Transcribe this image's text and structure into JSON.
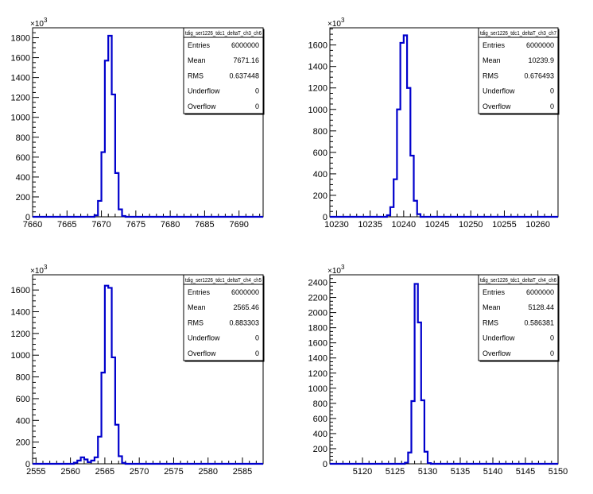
{
  "chart_data": [
    {
      "type": "bar",
      "histogram": true,
      "title": "tdig_ser1226_tdc1_deltaT_ch3_ch6",
      "y_exponent": "3",
      "xlim": [
        7660,
        7693.5
      ],
      "ylim": [
        0,
        1900
      ],
      "xticks": [
        7660,
        7665,
        7670,
        7675,
        7680,
        7685,
        7690
      ],
      "yticks": [
        0,
        200,
        400,
        600,
        800,
        1000,
        1200,
        1400,
        1600,
        1800
      ],
      "bin_width": 0.5,
      "bins": [
        {
          "x": 7669.0,
          "y": 15
        },
        {
          "x": 7669.5,
          "y": 160
        },
        {
          "x": 7670.0,
          "y": 650
        },
        {
          "x": 7670.5,
          "y": 1570
        },
        {
          "x": 7671.0,
          "y": 1820
        },
        {
          "x": 7671.5,
          "y": 1230
        },
        {
          "x": 7672.0,
          "y": 440
        },
        {
          "x": 7672.5,
          "y": 75
        },
        {
          "x": 7673.0,
          "y": 8
        }
      ],
      "stats": [
        {
          "label": "Entries",
          "value": "6000000"
        },
        {
          "label": "Mean",
          "value": "7671.16"
        },
        {
          "label": "RMS",
          "value": "0.637448"
        },
        {
          "label": "Underflow",
          "value": "0"
        },
        {
          "label": "Overflow",
          "value": "0"
        }
      ],
      "color": "#0000cc"
    },
    {
      "type": "bar",
      "histogram": true,
      "title": "tdig_ser1226_tdc1_deltaT_ch3_ch7",
      "y_exponent": "3",
      "xlim": [
        10229,
        10263
      ],
      "ylim": [
        0,
        1760
      ],
      "xticks": [
        10230,
        10235,
        10240,
        10245,
        10250,
        10255,
        10260
      ],
      "yticks": [
        0,
        200,
        400,
        600,
        800,
        1000,
        1200,
        1400,
        1600
      ],
      "bin_width": 0.5,
      "bins": [
        {
          "x": 10237.5,
          "y": 15
        },
        {
          "x": 10238.0,
          "y": 90
        },
        {
          "x": 10238.5,
          "y": 350
        },
        {
          "x": 10239.0,
          "y": 1000
        },
        {
          "x": 10239.5,
          "y": 1620
        },
        {
          "x": 10240.0,
          "y": 1690
        },
        {
          "x": 10240.5,
          "y": 1200
        },
        {
          "x": 10241.0,
          "y": 570
        },
        {
          "x": 10241.5,
          "y": 150
        },
        {
          "x": 10242.0,
          "y": 25
        }
      ],
      "stats": [
        {
          "label": "Entries",
          "value": "6000000"
        },
        {
          "label": "Mean",
          "value": "10239.9"
        },
        {
          "label": "RMS",
          "value": "0.676493"
        },
        {
          "label": "Underflow",
          "value": "0"
        },
        {
          "label": "Overflow",
          "value": "0"
        }
      ],
      "color": "#0000cc"
    },
    {
      "type": "bar",
      "histogram": true,
      "title": "tdig_ser1226_tdc1_deltaT_ch4_ch5",
      "y_exponent": "3",
      "xlim": [
        2554.5,
        2588
      ],
      "ylim": [
        0,
        1740
      ],
      "xticks": [
        2555,
        2560,
        2565,
        2570,
        2575,
        2580,
        2585
      ],
      "yticks": [
        0,
        200,
        400,
        600,
        800,
        1000,
        1200,
        1400,
        1600
      ],
      "bin_width": 0.5,
      "bins": [
        {
          "x": 2560.5,
          "y": 10
        },
        {
          "x": 2561.0,
          "y": 30
        },
        {
          "x": 2561.5,
          "y": 60
        },
        {
          "x": 2562.0,
          "y": 40
        },
        {
          "x": 2562.5,
          "y": 15
        },
        {
          "x": 2563.0,
          "y": 30
        },
        {
          "x": 2563.5,
          "y": 60
        },
        {
          "x": 2564.0,
          "y": 250
        },
        {
          "x": 2564.5,
          "y": 840
        },
        {
          "x": 2565.0,
          "y": 1640
        },
        {
          "x": 2565.5,
          "y": 1620
        },
        {
          "x": 2566.0,
          "y": 980
        },
        {
          "x": 2566.5,
          "y": 360
        },
        {
          "x": 2567.0,
          "y": 70
        },
        {
          "x": 2567.5,
          "y": 8
        }
      ],
      "stats": [
        {
          "label": "Entries",
          "value": "6000000"
        },
        {
          "label": "Mean",
          "value": "2565.46"
        },
        {
          "label": "RMS",
          "value": "0.883303"
        },
        {
          "label": "Underflow",
          "value": "0"
        },
        {
          "label": "Overflow",
          "value": "0"
        }
      ],
      "color": "#0000cc"
    },
    {
      "type": "bar",
      "histogram": true,
      "title": "tdig_ser1226_tdc1_deltaT_ch4_ch6",
      "y_exponent": "3",
      "xlim": [
        5115,
        5150
      ],
      "ylim": [
        0,
        2500
      ],
      "xticks": [
        5120,
        5125,
        5130,
        5135,
        5140,
        5145,
        5150
      ],
      "yticks": [
        0,
        200,
        400,
        600,
        800,
        1000,
        1200,
        1400,
        1600,
        1800,
        2000,
        2200,
        2400
      ],
      "bin_width": 0.5,
      "bins": [
        {
          "x": 5126.5,
          "y": 15
        },
        {
          "x": 5127.0,
          "y": 150
        },
        {
          "x": 5127.5,
          "y": 830
        },
        {
          "x": 5128.0,
          "y": 2380
        },
        {
          "x": 5128.5,
          "y": 1870
        },
        {
          "x": 5129.0,
          "y": 840
        },
        {
          "x": 5129.5,
          "y": 160
        },
        {
          "x": 5130.0,
          "y": 10
        }
      ],
      "stats": [
        {
          "label": "Entries",
          "value": "6000000"
        },
        {
          "label": "Mean",
          "value": "5128.44"
        },
        {
          "label": "RMS",
          "value": "0.586381"
        },
        {
          "label": "Underflow",
          "value": "0"
        },
        {
          "label": "Overflow",
          "value": "0"
        }
      ],
      "color": "#0000cc"
    }
  ]
}
